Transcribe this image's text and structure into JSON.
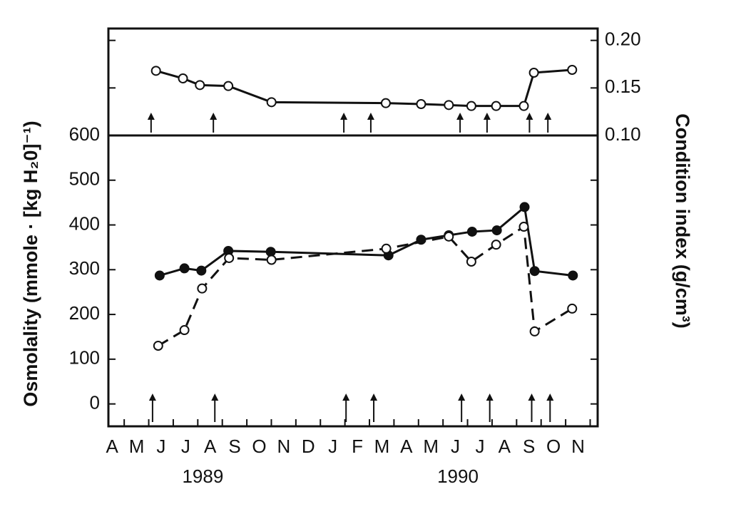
{
  "chart_data": [
    {
      "type": "line",
      "y_label": "Condition index (g/cm³)",
      "ylim": [
        0.1,
        0.2125
      ],
      "yticks": [
        {
          "value": 0.1,
          "label": "0.10"
        },
        {
          "value": 0.15,
          "label": "0.15"
        },
        {
          "value": 0.2,
          "label": "0.20"
        }
      ],
      "arrows": [
        1.59,
        4.13,
        9.45,
        10.55,
        14.19,
        15.29,
        17.02,
        17.77
      ],
      "series": [
        {
          "color": "#111",
          "marker": "open",
          "dashed": false,
          "x": [
            1.79,
            2.89,
            3.58,
            4.74,
            6.5,
            11.16,
            12.6,
            13.73,
            14.65,
            15.66,
            16.79,
            17.2,
            18.76
          ],
          "values": [
            0.168,
            0.16,
            0.153,
            0.152,
            0.135,
            0.134,
            0.133,
            0.132,
            0.131,
            0.131,
            0.131,
            0.166,
            0.169
          ]
        }
      ]
    },
    {
      "type": "line",
      "y_label": "Osmolality (mmole · [kg H₂0]⁻¹)",
      "ylim": [
        -50,
        600
      ],
      "yticks": [
        0,
        100,
        200,
        300,
        400,
        500,
        600
      ],
      "xlim": [
        -0.15,
        19.8
      ],
      "xticks": [
        {
          "value": 0,
          "label": "A"
        },
        {
          "value": 1,
          "label": "M"
        },
        {
          "value": 2,
          "label": "J"
        },
        {
          "value": 3,
          "label": "J"
        },
        {
          "value": 4,
          "label": "A"
        },
        {
          "value": 5,
          "label": "S"
        },
        {
          "value": 6,
          "label": "O"
        },
        {
          "value": 7,
          "label": "N"
        },
        {
          "value": 8,
          "label": "D"
        },
        {
          "value": 9,
          "label": "J"
        },
        {
          "value": 10,
          "label": "F"
        },
        {
          "value": 11,
          "label": "M"
        },
        {
          "value": 12,
          "label": "A"
        },
        {
          "value": 13,
          "label": "M"
        },
        {
          "value": 14,
          "label": "J"
        },
        {
          "value": 15,
          "label": "J"
        },
        {
          "value": 16,
          "label": "A"
        },
        {
          "value": 17,
          "label": "S"
        },
        {
          "value": 18,
          "label": "O"
        },
        {
          "value": 19,
          "label": "N"
        }
      ],
      "years": [
        {
          "value": 3.7,
          "label": "1989"
        },
        {
          "value": 14.1,
          "label": "1990"
        }
      ],
      "arrows": [
        1.65,
        4.19,
        9.54,
        10.67,
        14.25,
        15.4,
        17.11,
        17.86
      ],
      "series": [
        {
          "color": "#111",
          "marker": "filled",
          "dashed": false,
          "x": [
            1.94,
            2.95,
            3.64,
            4.74,
            6.47,
            11.27,
            12.6,
            13.73,
            14.68,
            15.69,
            16.82,
            17.23,
            18.79
          ],
          "values": [
            287,
            303,
            298,
            342,
            340,
            332,
            367,
            377,
            385,
            388,
            440,
            297,
            287
          ]
        },
        {
          "color": "#111",
          "marker": "open",
          "dashed": true,
          "x": [
            1.88,
            2.95,
            3.67,
            4.77,
            6.5,
            11.18,
            13.73,
            14.65,
            15.66,
            16.79,
            17.23,
            18.76
          ],
          "values": [
            130,
            165,
            258,
            326,
            322,
            347,
            374,
            318,
            356,
            396,
            162,
            213
          ]
        }
      ]
    }
  ]
}
